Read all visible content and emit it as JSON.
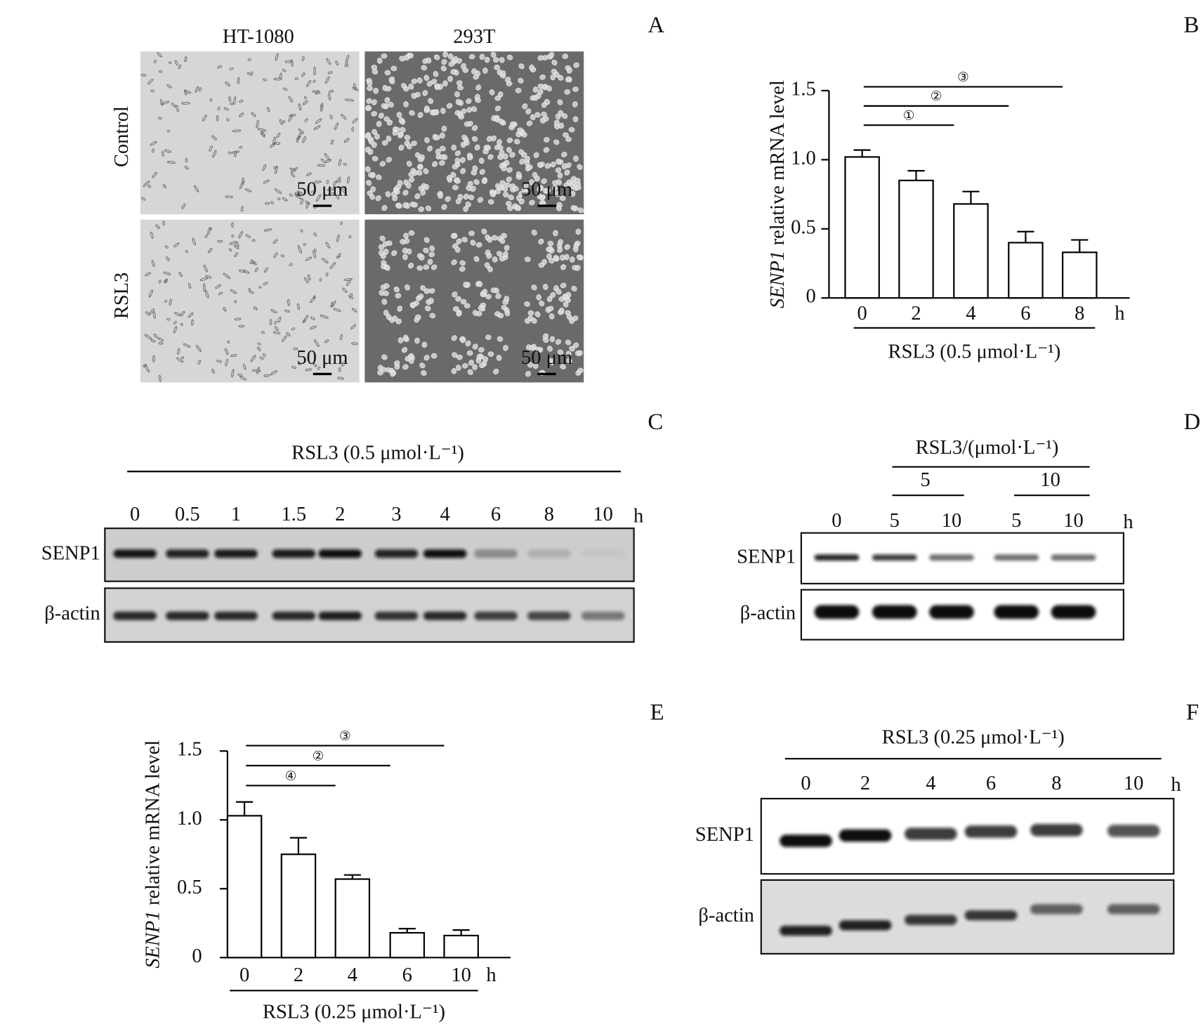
{
  "panel_a": {
    "letter": "A",
    "columns": [
      "HT-1080",
      "293T"
    ],
    "rows": [
      "Control",
      "RSL3"
    ],
    "scale_bar": "50 μm"
  },
  "chart_data": [
    {
      "panel": "B",
      "type": "bar",
      "ylabel_gene": "SENP1",
      "ylabel": "relative mRNA level",
      "categories": [
        "0",
        "2",
        "4",
        "6",
        "8"
      ],
      "x_unit": "h",
      "treatment": "RSL3 (0.5 μmol·L⁻¹)",
      "values": [
        1.02,
        0.85,
        0.68,
        0.4,
        0.33
      ],
      "errors": [
        0.05,
        0.07,
        0.09,
        0.08,
        0.09
      ],
      "ylim": [
        0,
        1.5
      ],
      "yticks": [
        0,
        0.5,
        {
          "value": 1,
          "label": "1.0"
        },
        1.5
      ],
      "significance": [
        {
          "label": "③",
          "between": [
            0,
            4
          ]
        },
        {
          "label": "②",
          "between": [
            0,
            3
          ]
        },
        {
          "label": "①",
          "between": [
            0,
            2
          ]
        }
      ]
    },
    {
      "panel": "E",
      "type": "bar",
      "ylabel_gene": "SENP1",
      "ylabel": "relative mRNA level",
      "categories": [
        "0",
        "2",
        "4",
        "6",
        "10"
      ],
      "x_unit": "h",
      "treatment": "RSL3 (0.25 μmol·L⁻¹)",
      "values": [
        1.03,
        0.75,
        0.57,
        0.18,
        0.16
      ],
      "errors": [
        0.1,
        0.12,
        0.03,
        0.03,
        0.04
      ],
      "ylim": [
        0,
        1.5
      ],
      "yticks": [
        0,
        0.5,
        {
          "value": 1,
          "label": "1.0"
        },
        1.5
      ],
      "significance": [
        {
          "label": "③",
          "between": [
            0,
            4
          ]
        },
        {
          "label": "②",
          "between": [
            0,
            3
          ]
        },
        {
          "label": "④",
          "between": [
            0,
            2
          ]
        }
      ]
    }
  ],
  "panel_c": {
    "letter": "C",
    "treatment": "RSL3 (0.5 μmol·L⁻¹)",
    "lanes": [
      "0",
      "0.5",
      "1",
      "1.5",
      "2",
      "3",
      "4",
      "6",
      "8",
      "10"
    ],
    "unit": "h",
    "proteins": [
      "SENP1",
      "β-actin"
    ]
  },
  "panel_d": {
    "letter": "D",
    "treatment": "RSL3/(μmol·L⁻¹)",
    "groups": [
      "5",
      "10"
    ],
    "lanes": [
      "0",
      "5",
      "10",
      "5",
      "10"
    ],
    "unit": "h",
    "proteins": [
      "SENP1",
      "β-actin"
    ]
  },
  "panel_f": {
    "letter": "F",
    "treatment": "RSL3 (0.25 μmol·L⁻¹)",
    "lanes": [
      "0",
      "2",
      "4",
      "6",
      "8",
      "10"
    ],
    "unit": "h",
    "proteins": [
      "SENP1",
      "β-actin"
    ]
  }
}
